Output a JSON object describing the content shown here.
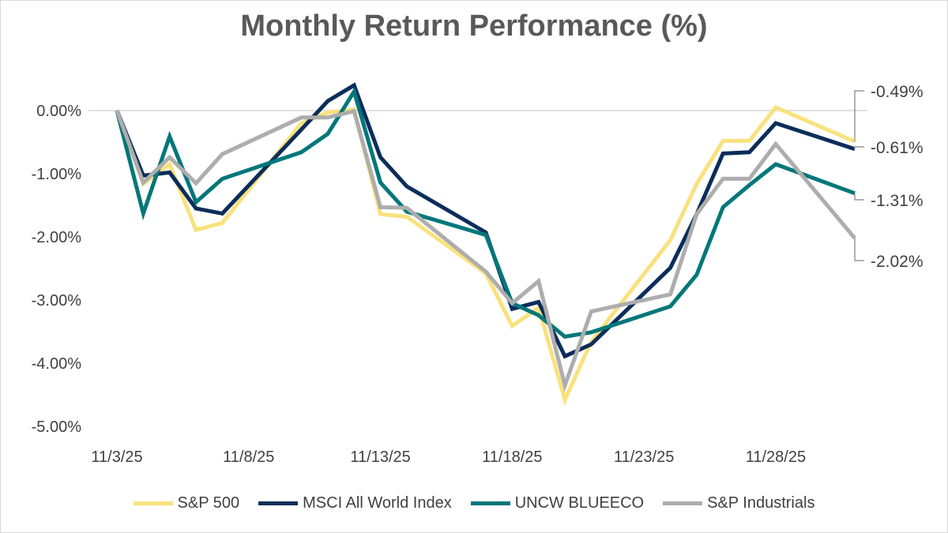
{
  "chart_data": {
    "type": "line",
    "title": "Monthly Return Performance (%)",
    "xlabel": "",
    "ylabel": "",
    "x": [
      "11/3/25",
      "11/4/25",
      "11/5/25",
      "11/6/25",
      "11/7/25",
      "11/10/25",
      "11/11/25",
      "11/12/25",
      "11/13/25",
      "11/14/25",
      "11/17/25",
      "11/18/25",
      "11/19/25",
      "11/20/25",
      "11/21/25",
      "11/24/25",
      "11/25/25",
      "11/26/25",
      "11/27/25",
      "11/28/25",
      "12/1/25"
    ],
    "x_ticks": [
      "11/3/25",
      "11/8/25",
      "11/13/25",
      "11/18/25",
      "11/23/25",
      "11/28/25"
    ],
    "x_range": [
      "11/3/25",
      "12/1/25"
    ],
    "y_ticks": [
      "0.00%",
      "-1.00%",
      "-2.00%",
      "-3.00%",
      "-4.00%",
      "-5.00%"
    ],
    "ylim": [
      -5.0,
      0.5
    ],
    "grid": "zero line only",
    "legend": "bottom",
    "series": [
      {
        "name": "S&P 500",
        "color": "#F9E27D",
        "values": [
          0,
          -1.16,
          -0.85,
          -1.89,
          -1.78,
          -0.2,
          -0.03,
          0.02,
          -1.64,
          -1.68,
          -2.58,
          -3.41,
          -3.12,
          -4.58,
          -3.66,
          -2.05,
          -1.16,
          -0.48,
          -0.48,
          0.05,
          -0.49
        ],
        "end_label": "-0.49%"
      },
      {
        "name": "MSCI All World Index",
        "color": "#0B2D5B",
        "values": [
          0,
          -1.03,
          -0.98,
          -1.55,
          -1.63,
          -0.3,
          0.15,
          0.4,
          -0.74,
          -1.2,
          -1.93,
          -3.14,
          -3.03,
          -3.89,
          -3.7,
          -2.49,
          -1.64,
          -0.68,
          -0.66,
          -0.2,
          -0.61
        ],
        "end_label": "-0.61%"
      },
      {
        "name": "UNCW BLUEECO",
        "color": "#00777A",
        "values": [
          0,
          -1.63,
          -0.41,
          -1.45,
          -1.08,
          -0.66,
          -0.37,
          0.3,
          -1.14,
          -1.6,
          -1.97,
          -3.05,
          -3.24,
          -3.58,
          -3.51,
          -3.1,
          -2.6,
          -1.53,
          -1.18,
          -0.85,
          -1.31
        ],
        "end_label": "-1.31%"
      },
      {
        "name": "S&P Industrials",
        "color": "#ADADAD",
        "values": [
          0,
          -1.14,
          -0.74,
          -1.15,
          -0.69,
          -0.11,
          -0.11,
          -0.01,
          -1.53,
          -1.54,
          -2.55,
          -3.05,
          -2.7,
          -4.35,
          -3.18,
          -2.91,
          -1.64,
          -1.08,
          -1.08,
          -0.53,
          -2.02
        ],
        "end_label": "-2.02%"
      }
    ]
  }
}
